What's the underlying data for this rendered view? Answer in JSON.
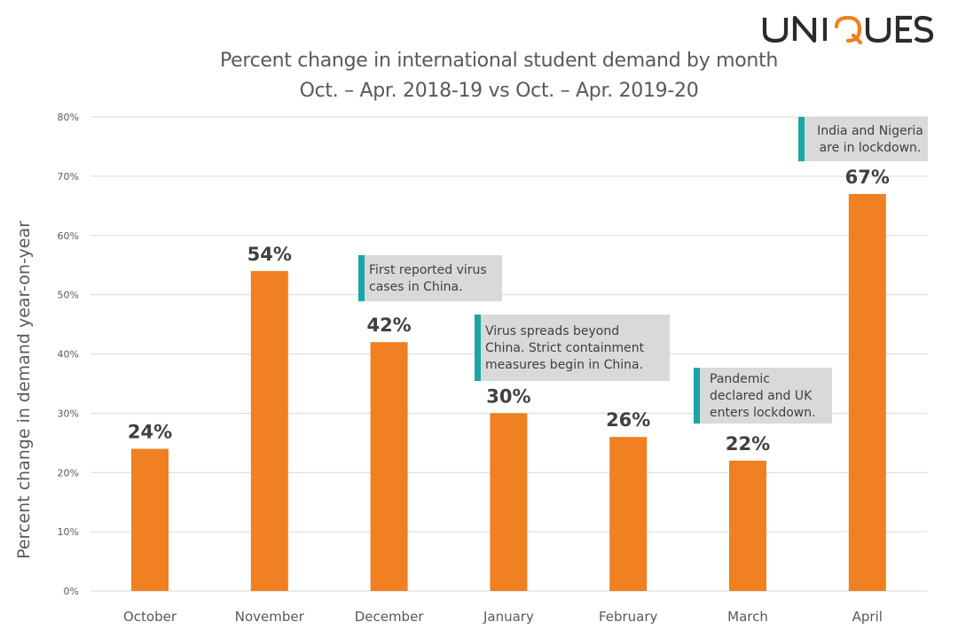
{
  "logo_text": "UNIQUEST",
  "colors": {
    "bar": "#f08021",
    "grid": "#d9d9d9",
    "text": "#595959",
    "note_bg": "#d9d9d9",
    "note_accent": "#1aa6a6",
    "logo_dark": "#2b2b2b",
    "logo_accent": "#f08021"
  },
  "chart_data": {
    "type": "bar",
    "title": "Percent change in international student demand by month",
    "subtitle": "Oct. – Apr. 2018-19 vs Oct. – Apr. 2019-20",
    "xlabel": "",
    "ylabel": "Percent change in demand year-on-year",
    "ylim": [
      0,
      80
    ],
    "y_ticks": [
      "0%",
      "10%",
      "20%",
      "30%",
      "40%",
      "50%",
      "60%",
      "70%",
      "80%"
    ],
    "categories": [
      "October",
      "November",
      "December",
      "January",
      "February",
      "March",
      "April"
    ],
    "values": [
      24,
      54,
      42,
      30,
      26,
      22,
      67
    ],
    "data_labels": [
      "24%",
      "54%",
      "42%",
      "30%",
      "26%",
      "22%",
      "67%"
    ],
    "grid": true,
    "legend": "none",
    "annotations": [
      {
        "category": "December",
        "lines": [
          "First reported virus",
          "cases in China."
        ]
      },
      {
        "category": "January",
        "lines": [
          "Virus spreads beyond",
          "China. Strict containment",
          "measures begin in China."
        ]
      },
      {
        "category": "March",
        "lines": [
          "Pandemic",
          "declared and UK",
          "enters lockdown."
        ]
      },
      {
        "category": "April",
        "lines": [
          "India and Nigeria",
          "are in lockdown."
        ]
      }
    ]
  }
}
